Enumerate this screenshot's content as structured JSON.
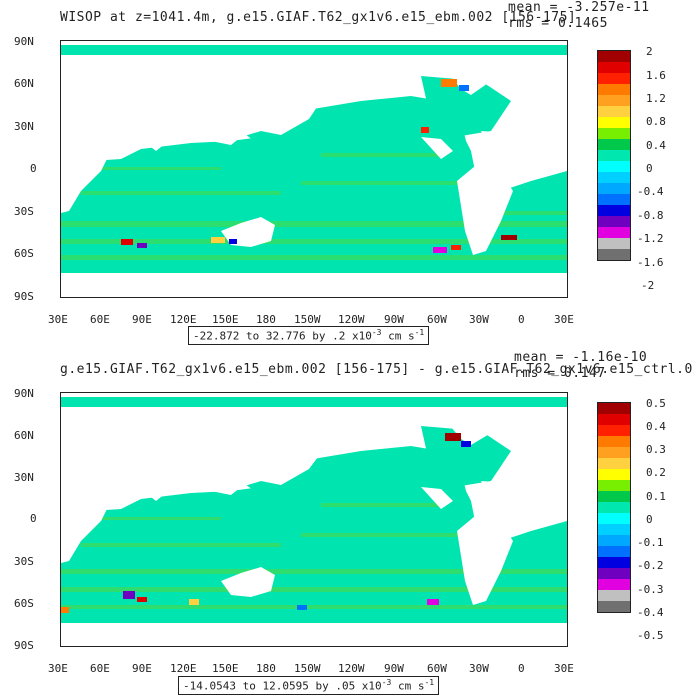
{
  "panels": [
    {
      "title": "WISOP at z=1041.4m, g.e15.GIAF.T62_gx1v6.e15_ebm.002 [156-175]",
      "mean": "mean = -3.257e-11",
      "rms": "rms = 0.1465",
      "y_labels": [
        "90N",
        "60N",
        "30N",
        "0",
        "30S",
        "60S",
        "90S"
      ],
      "x_labels": [
        "30E",
        "60E",
        "90E",
        "120E",
        "150E",
        "180",
        "150W",
        "120W",
        "90W",
        "60W",
        "30W",
        "0",
        "30E"
      ],
      "range_text": "-22.872 to 32.776 by .2",
      "range_units_prefix": " x10",
      "range_units_exp": "-3",
      "range_units_mid": " cm s",
      "range_units_exp2": "-1",
      "colorbar_labels": [
        "2",
        "1.6",
        "1.2",
        "0.8",
        "0.4",
        "0",
        "-0.4",
        "-0.8",
        "-1.2",
        "-1.6",
        "-2"
      ]
    },
    {
      "title": "g.e15.GIAF.T62_gx1v6.e15_ebm.002 [156-175] - g.e15.GIAF.T62_gx1v6.e15_ctrl.0",
      "mean": "mean = -1.16e-10",
      "rms": "rms = 0.147",
      "y_labels": [
        "90N",
        "60N",
        "30N",
        "0",
        "30S",
        "60S",
        "90S"
      ],
      "x_labels": [
        "30E",
        "60E",
        "90E",
        "120E",
        "150E",
        "180",
        "150W",
        "120W",
        "90W",
        "60W",
        "30W",
        "0",
        "30E"
      ],
      "range_text": "-14.0543 to 12.0595 by .05",
      "range_units_prefix": " x10",
      "range_units_exp": "-3",
      "range_units_mid": " cm s",
      "range_units_exp2": "-1",
      "colorbar_labels": [
        "0.5",
        "0.4",
        "0.3",
        "0.2",
        "0.1",
        "0",
        "-0.1",
        "-0.2",
        "-0.3",
        "-0.4",
        "-0.5"
      ]
    }
  ],
  "colors": {
    "ocean_main": "#00e5b0",
    "ocean_green": "#33dd66",
    "ocean_cyan": "#00ffee",
    "land": "#ffffff",
    "colorbar": [
      "#a00000",
      "#e00000",
      "#ff2000",
      "#ff7a00",
      "#ffa020",
      "#ffd040",
      "#ffff00",
      "#78ee00",
      "#00c84a",
      "#00e8b0",
      "#00ffff",
      "#00d0ff",
      "#00a8ff",
      "#0070ff",
      "#0000e0",
      "#7000c0",
      "#e000e0",
      "#c0c0c0",
      "#707070"
    ]
  }
}
